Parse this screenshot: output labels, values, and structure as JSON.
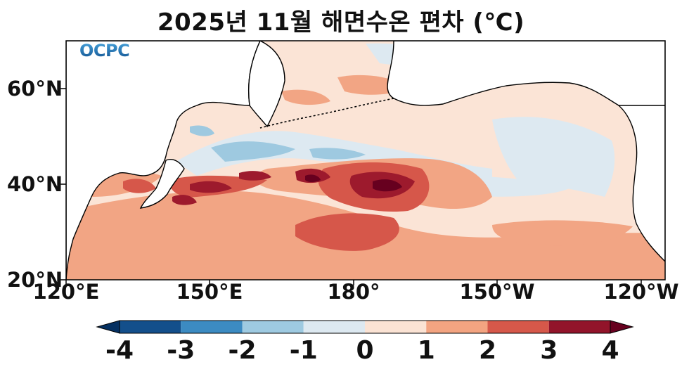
{
  "title": "2025년 11월 해면수온 편차 (℃)",
  "logo_text": "OCPC",
  "map": {
    "region": "North Pacific",
    "lat_ticks": [
      "60°N",
      "40°N",
      "20°N"
    ],
    "lon_ticks": [
      "120°E",
      "150°E",
      "180°",
      "150°W",
      "120°W"
    ],
    "lat_range": [
      20,
      70
    ],
    "lon_range_east": [
      120,
      245
    ],
    "anomaly_colors": {
      "-4": "#17508f",
      "-3": "#3d8cc2",
      "-2": "#9ec9e0",
      "-1": "#dde9f1",
      "0": "#fbe4d6",
      "1": "#f2a584",
      "2": "#d6574a",
      "3": "#9d1a2d",
      "4": "#67001f"
    }
  },
  "colorbar": {
    "labels": [
      "-4",
      "-3",
      "-2",
      "-1",
      "0",
      "1",
      "2",
      "3",
      "4"
    ],
    "colors": [
      "#053061",
      "#134f8b",
      "#3c8bc2",
      "#9ecae1",
      "#dde9f1",
      "#fbe3d4",
      "#f3a481",
      "#d6584a",
      "#92142a",
      "#67001f"
    ]
  }
}
